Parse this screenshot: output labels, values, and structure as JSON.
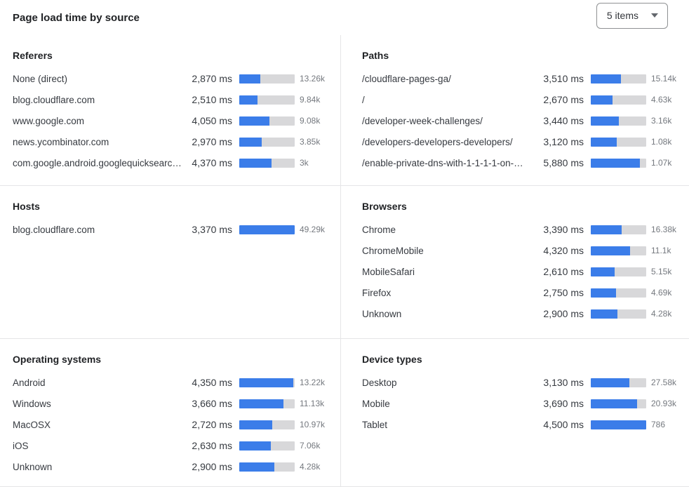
{
  "header": {
    "title": "Page load time by source",
    "items_dropdown": {
      "label": "5 items",
      "icon": "chevron-down-icon"
    }
  },
  "colors": {
    "accent_bar": "#3b7de9",
    "bar_track": "#d8d8da",
    "divider": "#e5e5e7",
    "heading_text": "#1f2124",
    "label_text": "#363a40",
    "count_text": "#75797f"
  },
  "chart_data": {
    "type": "bar",
    "unit": "milliseconds",
    "value_label": "page load time (ms)",
    "secondary_value_label": "request count",
    "layout": "2-column grid, 3 sections, horizontal bars scaled per panel",
    "panels": [
      {
        "title": "Referers",
        "grid": "left-top",
        "rows": [
          {
            "label": "None (direct)",
            "ms": 2870,
            "ms_display": "2,870 ms",
            "count": "13.26k",
            "bar_pct": 38
          },
          {
            "label": "blog.cloudflare.com",
            "ms": 2510,
            "ms_display": "2,510 ms",
            "count": "9.84k",
            "bar_pct": 33
          },
          {
            "label": "www.google.com",
            "ms": 4050,
            "ms_display": "4,050 ms",
            "count": "9.08k",
            "bar_pct": 54
          },
          {
            "label": "news.ycombinator.com",
            "ms": 2970,
            "ms_display": "2,970 ms",
            "count": "3.85k",
            "bar_pct": 40
          },
          {
            "label": "com.google.android.googlequicksearc…",
            "ms": 4370,
            "ms_display": "4,370 ms",
            "count": "3k",
            "bar_pct": 58
          }
        ]
      },
      {
        "title": "Paths",
        "grid": "right-top",
        "rows": [
          {
            "label": "/cloudflare-pages-ga/",
            "ms": 3510,
            "ms_display": "3,510 ms",
            "count": "15.14k",
            "bar_pct": 54
          },
          {
            "label": "/",
            "ms": 2670,
            "ms_display": "2,670 ms",
            "count": "4.63k",
            "bar_pct": 39
          },
          {
            "label": "/developer-week-challenges/",
            "ms": 3440,
            "ms_display": "3,440 ms",
            "count": "3.16k",
            "bar_pct": 51
          },
          {
            "label": "/developers-developers-developers/",
            "ms": 3120,
            "ms_display": "3,120 ms",
            "count": "1.08k",
            "bar_pct": 47
          },
          {
            "label": "/enable-private-dns-with-1-1-1-1-on-…",
            "ms": 5880,
            "ms_display": "5,880 ms",
            "count": "1.07k",
            "bar_pct": 88
          }
        ]
      },
      {
        "title": "Hosts",
        "grid": "left-middle",
        "rows": [
          {
            "label": "blog.cloudflare.com",
            "ms": 3370,
            "ms_display": "3,370 ms",
            "count": "49.29k",
            "bar_pct": 100
          }
        ]
      },
      {
        "title": "Browsers",
        "grid": "right-middle",
        "rows": [
          {
            "label": "Chrome",
            "ms": 3390,
            "ms_display": "3,390 ms",
            "count": "16.38k",
            "bar_pct": 56
          },
          {
            "label": "ChromeMobile",
            "ms": 4320,
            "ms_display": "4,320 ms",
            "count": "11.1k",
            "bar_pct": 71
          },
          {
            "label": "MobileSafari",
            "ms": 2610,
            "ms_display": "2,610 ms",
            "count": "5.15k",
            "bar_pct": 43
          },
          {
            "label": "Firefox",
            "ms": 2750,
            "ms_display": "2,750 ms",
            "count": "4.69k",
            "bar_pct": 45
          },
          {
            "label": "Unknown",
            "ms": 2900,
            "ms_display": "2,900 ms",
            "count": "4.28k",
            "bar_pct": 48
          }
        ]
      },
      {
        "title": "Operating systems",
        "grid": "left-bottom",
        "rows": [
          {
            "label": "Android",
            "ms": 4350,
            "ms_display": "4,350 ms",
            "count": "13.22k",
            "bar_pct": 97
          },
          {
            "label": "Windows",
            "ms": 3660,
            "ms_display": "3,660 ms",
            "count": "11.13k",
            "bar_pct": 80
          },
          {
            "label": "MacOSX",
            "ms": 2720,
            "ms_display": "2,720 ms",
            "count": "10.97k",
            "bar_pct": 60
          },
          {
            "label": "iOS",
            "ms": 2630,
            "ms_display": "2,630 ms",
            "count": "7.06k",
            "bar_pct": 57
          },
          {
            "label": "Unknown",
            "ms": 2900,
            "ms_display": "2,900 ms",
            "count": "4.28k",
            "bar_pct": 63
          }
        ]
      },
      {
        "title": "Device types",
        "grid": "right-bottom",
        "rows": [
          {
            "label": "Desktop",
            "ms": 3130,
            "ms_display": "3,130 ms",
            "count": "27.58k",
            "bar_pct": 70
          },
          {
            "label": "Mobile",
            "ms": 3690,
            "ms_display": "3,690 ms",
            "count": "20.93k",
            "bar_pct": 83
          },
          {
            "label": "Tablet",
            "ms": 4500,
            "ms_display": "4,500 ms",
            "count": "786",
            "bar_pct": 100
          }
        ]
      }
    ]
  }
}
